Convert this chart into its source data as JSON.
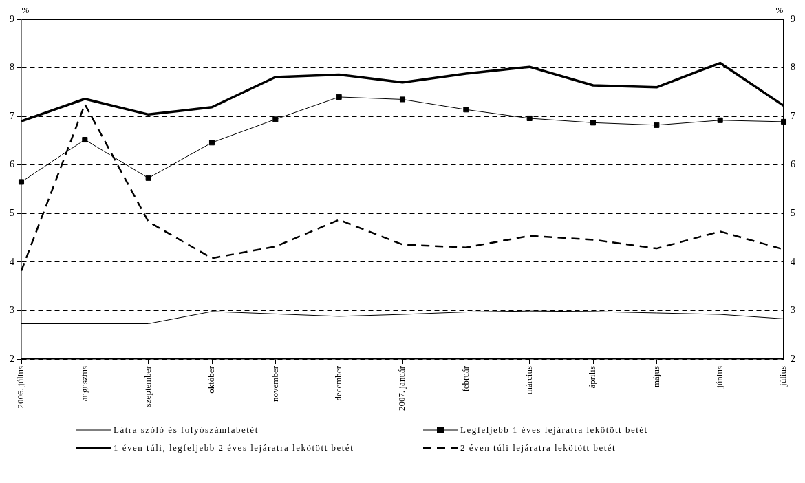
{
  "chart_data": {
    "type": "line",
    "ylabel": "%",
    "y2label": "%",
    "categories": [
      "2006. július",
      "augusztus",
      "szeptember",
      "október",
      "november",
      "december",
      "2007. január",
      "február",
      "március",
      "április",
      "május",
      "június",
      "július"
    ],
    "series": [
      {
        "name": "Látra szóló és folyószámlabetét",
        "color": "#000000",
        "marker": "none",
        "line_style": "solid",
        "values": [
          2.73,
          2.73,
          2.73,
          2.98,
          2.93,
          2.88,
          2.92,
          2.97,
          2.99,
          2.98,
          2.95,
          2.92,
          2.83
        ]
      },
      {
        "name": "Legfeljebb 1 éves lejáratra lekötött betét",
        "color": "#000000",
        "marker": "square",
        "line_style": "solid",
        "values": [
          5.65,
          6.52,
          5.73,
          6.46,
          6.94,
          7.4,
          7.35,
          7.14,
          6.96,
          6.87,
          6.82,
          6.92,
          6.89
        ]
      },
      {
        "name": "1 éven túli, legfeljebb 2 éves lejáratra lekötött betét",
        "color": "#000000",
        "marker": "none",
        "line_style": "solid",
        "values": [
          6.9,
          7.36,
          7.04,
          7.19,
          7.81,
          7.86,
          7.7,
          7.88,
          8.02,
          7.64,
          7.6,
          8.1,
          7.22
        ]
      },
      {
        "name": "2 éven túli lejáratra lekötött betét",
        "color": "#000000",
        "marker": "none",
        "line_style": "dashed",
        "values": [
          3.82,
          7.25,
          4.83,
          4.08,
          4.32,
          4.87,
          4.36,
          4.3,
          4.54,
          4.46,
          4.28,
          4.63,
          4.26
        ]
      }
    ],
    "ylim": [
      2,
      9
    ],
    "yticks": [
      2,
      3,
      4,
      5,
      6,
      7,
      8,
      9
    ],
    "y2lim": [
      2,
      9
    ],
    "y2ticks": [
      2,
      3,
      4,
      5,
      6,
      7,
      8,
      9
    ],
    "grid": "y",
    "legend": "bottom"
  }
}
